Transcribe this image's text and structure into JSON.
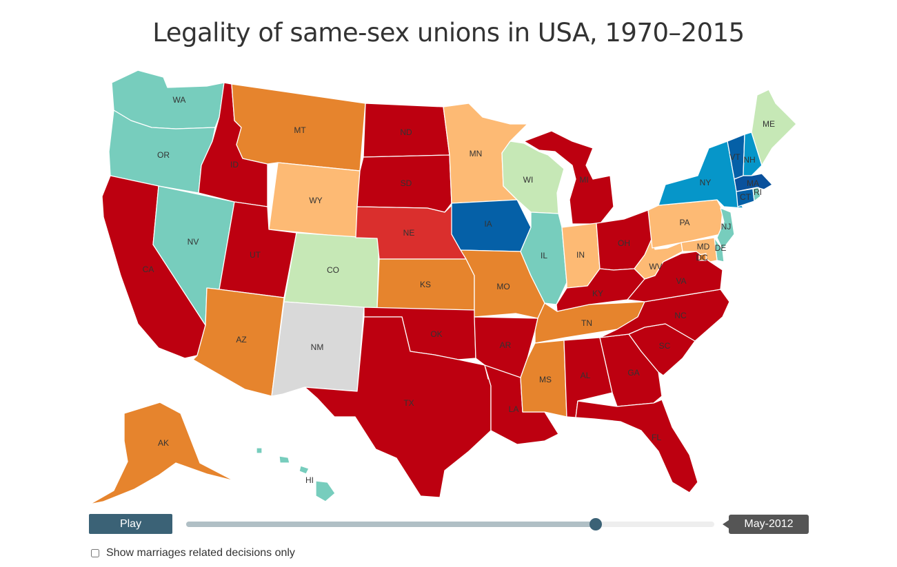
{
  "title": "Legality of same-sex unions in USA, 1970–2015",
  "colors": {
    "teal": "#77cdbd",
    "light_green": "#c6e8b6",
    "light_orange": "#fdba74",
    "orange": "#e6842d",
    "dark_red": "#bd0010",
    "red": "#da2f2d",
    "blue_light": "#0696c9",
    "blue": "#0560a7",
    "blue_dark": "#0a519c",
    "gray": "#d9d9d9"
  },
  "states": [
    {
      "abbr": "WA",
      "color": "#77cdbd"
    },
    {
      "abbr": "OR",
      "color": "#77cdbd"
    },
    {
      "abbr": "CA",
      "color": "#bd0010"
    },
    {
      "abbr": "NV",
      "color": "#77cdbd"
    },
    {
      "abbr": "ID",
      "color": "#bd0010"
    },
    {
      "abbr": "MT",
      "color": "#e6842d"
    },
    {
      "abbr": "WY",
      "color": "#fdba74"
    },
    {
      "abbr": "UT",
      "color": "#bd0010"
    },
    {
      "abbr": "CO",
      "color": "#c6e8b6"
    },
    {
      "abbr": "AZ",
      "color": "#e6842d"
    },
    {
      "abbr": "NM",
      "color": "#d9d9d9"
    },
    {
      "abbr": "ND",
      "color": "#bd0010"
    },
    {
      "abbr": "SD",
      "color": "#bd0010"
    },
    {
      "abbr": "NE",
      "color": "#da2f2d"
    },
    {
      "abbr": "KS",
      "color": "#e6842d"
    },
    {
      "abbr": "OK",
      "color": "#bd0010"
    },
    {
      "abbr": "TX",
      "color": "#bd0010"
    },
    {
      "abbr": "MN",
      "color": "#fdba74"
    },
    {
      "abbr": "IA",
      "color": "#0560a7"
    },
    {
      "abbr": "MO",
      "color": "#e6842d"
    },
    {
      "abbr": "AR",
      "color": "#bd0010"
    },
    {
      "abbr": "LA",
      "color": "#bd0010"
    },
    {
      "abbr": "WI",
      "color": "#c6e8b6"
    },
    {
      "abbr": "IL",
      "color": "#77cdbd"
    },
    {
      "abbr": "MI",
      "color": "#bd0010"
    },
    {
      "abbr": "IN",
      "color": "#fdba74"
    },
    {
      "abbr": "OH",
      "color": "#bd0010"
    },
    {
      "abbr": "KY",
      "color": "#bd0010"
    },
    {
      "abbr": "TN",
      "color": "#e6842d"
    },
    {
      "abbr": "MS",
      "color": "#e6842d"
    },
    {
      "abbr": "AL",
      "color": "#bd0010"
    },
    {
      "abbr": "GA",
      "color": "#bd0010"
    },
    {
      "abbr": "FL",
      "color": "#bd0010"
    },
    {
      "abbr": "SC",
      "color": "#bd0010"
    },
    {
      "abbr": "NC",
      "color": "#bd0010"
    },
    {
      "abbr": "VA",
      "color": "#bd0010"
    },
    {
      "abbr": "WV",
      "color": "#fdba74"
    },
    {
      "abbr": "PA",
      "color": "#fdba74"
    },
    {
      "abbr": "NY",
      "color": "#0696c9"
    },
    {
      "abbr": "NJ",
      "color": "#77cdbd"
    },
    {
      "abbr": "DE",
      "color": "#77cdbd"
    },
    {
      "abbr": "MD",
      "color": "#fdba74"
    },
    {
      "abbr": "DC",
      "color": "#e6842d"
    },
    {
      "abbr": "VT",
      "color": "#0560a7"
    },
    {
      "abbr": "NH",
      "color": "#0696c9"
    },
    {
      "abbr": "ME",
      "color": "#c6e8b6"
    },
    {
      "abbr": "MA",
      "color": "#0a519c"
    },
    {
      "abbr": "CT",
      "color": "#0560a7"
    },
    {
      "abbr": "RI",
      "color": "#77cdbd"
    },
    {
      "abbr": "AK",
      "color": "#e6842d"
    },
    {
      "abbr": "HI",
      "color": "#77cdbd"
    }
  ],
  "controls": {
    "play_label": "Play",
    "slider_position": 0.775,
    "date_label": "May-2012",
    "filter_label": "Show marriages related decisions only",
    "filter_checked": false
  }
}
